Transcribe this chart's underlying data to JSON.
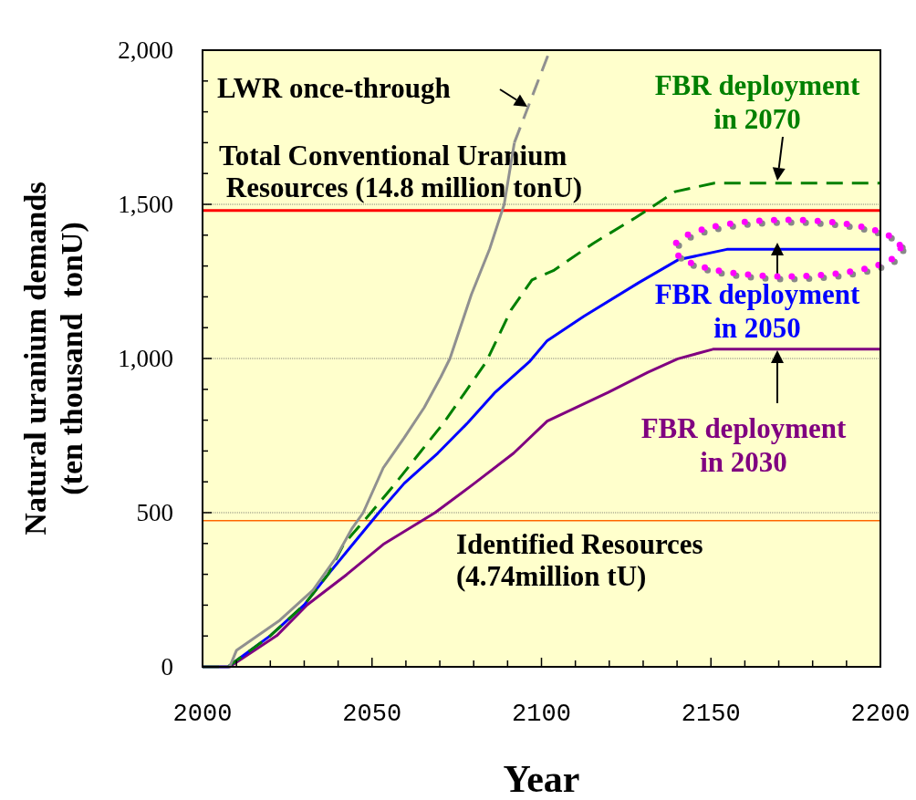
{
  "chart_data": {
    "type": "line",
    "xlabel": "Year",
    "ylabel": "Natural uranium demands\n(ten thousand  tonU)",
    "xlim": [
      2000,
      2200
    ],
    "ylim": [
      0,
      2000
    ],
    "xticks": [
      2000,
      {
        "value": 2010,
        "label": null
      },
      {
        "value": 2020,
        "label": null
      },
      {
        "value": 2030,
        "label": null
      },
      {
        "value": 2040,
        "label": null
      },
      2050,
      {
        "value": 2060,
        "label": null
      },
      {
        "value": 2070,
        "label": null
      },
      {
        "value": 2080,
        "label": null
      },
      {
        "value": 2090,
        "label": null
      },
      2100,
      {
        "value": 2110,
        "label": null
      },
      {
        "value": 2120,
        "label": null
      },
      {
        "value": 2130,
        "label": null
      },
      {
        "value": 2140,
        "label": null
      },
      2150,
      {
        "value": 2160,
        "label": null
      },
      {
        "value": 2170,
        "label": null
      },
      {
        "value": 2180,
        "label": null
      },
      {
        "value": 2190,
        "label": null
      },
      2200
    ],
    "yticks": [
      0,
      {
        "value": 100,
        "label": null
      },
      {
        "value": 200,
        "label": null
      },
      {
        "value": 300,
        "label": null
      },
      {
        "value": 400,
        "label": null
      },
      500,
      {
        "value": 600,
        "label": null
      },
      {
        "value": 700,
        "label": null
      },
      {
        "value": 800,
        "label": null
      },
      {
        "value": 900,
        "label": null
      },
      {
        "value": 1000,
        "label": "1,000"
      },
      {
        "value": 1100,
        "label": null
      },
      {
        "value": 1200,
        "label": null
      },
      {
        "value": 1300,
        "label": null
      },
      {
        "value": 1400,
        "label": null
      },
      {
        "value": 1500,
        "label": "1,500"
      },
      {
        "value": 1600,
        "label": null
      },
      {
        "value": 1700,
        "label": null
      },
      {
        "value": 1800,
        "label": null
      },
      {
        "value": 1900,
        "label": null
      },
      {
        "value": 2000,
        "label": "2,000"
      }
    ],
    "grid": "y",
    "ref_lines": [
      {
        "axis": "y",
        "value": 1480,
        "label": "Total Conventional Uranium\n Resources (14.8 million tonU)",
        "color": "#ff0000"
      },
      {
        "axis": "y",
        "value": 474,
        "label": "Identified Resources\n(4.74million tU)",
        "color": "#ff6600"
      }
    ],
    "series": [
      {
        "name": "LWR once-through",
        "color": "#909090",
        "line_style": "solid",
        "x": [
          2000,
          2008,
          2010,
          2022.8,
          2032.6,
          2039,
          2044,
          2047.4,
          2053.3,
          2059.5,
          2065.4,
          2070.3,
          2073,
          2079.3,
          2084.7,
          2089,
          2092
        ],
        "values": [
          0,
          0,
          53,
          151,
          249,
          348,
          447,
          500,
          645,
          743,
          841,
          940,
          1000,
          1207,
          1355,
          1500,
          1700
        ]
      },
      {
        "color": "#909090",
        "line_style": "dashed",
        "x": [
          2092,
          2102.5
        ],
        "values": [
          1700,
          2000
        ]
      },
      {
        "name": "FBR deployment\nin 2070",
        "color": "#008000",
        "line_style": "dashed",
        "x": [
          2000,
          2007.5,
          2020,
          2030,
          2037,
          2041.6,
          2049.7,
          2056.9,
          2064,
          2071.2,
          2077.5,
          2083.7,
          2091,
          2097.2,
          2103.5,
          2115.2,
          2127.8,
          2139.4,
          2151,
          2200
        ],
        "values": [
          0,
          0,
          101,
          201,
          299,
          397,
          500,
          595,
          693,
          792,
          891,
          989,
          1157,
          1255,
          1285,
          1373,
          1457,
          1541,
          1569,
          1569
        ]
      },
      {
        "name": "FBR deployment\nin 2050",
        "color": "#0000ff",
        "line_style": "solid",
        "x": [
          2000,
          2007.5,
          2020,
          2030,
          2037,
          2044.3,
          2052,
          2059.5,
          2069.4,
          2078.3,
          2086.4,
          2096.4,
          2101.7,
          2112.5,
          2128.7,
          2140.3,
          2154.7,
          2200
        ],
        "values": [
          0,
          0,
          101,
          201,
          299,
          397,
          500,
          595,
          693,
          792,
          891,
          989,
          1058,
          1137,
          1246,
          1320,
          1354,
          1354
        ]
      },
      {
        "name": "FBR deployment\nin 2030",
        "color": "#800080",
        "line_style": "solid",
        "x": [
          2000,
          2008,
          2021.9,
          2030.9,
          2042.5,
          2053.3,
          2068.6,
          2080.2,
          2091.8,
          2101.7,
          2119.7,
          2131.4,
          2140.2,
          2150.6,
          2200
        ],
        "values": [
          0,
          0,
          101,
          201,
          299,
          397,
          500,
          595,
          693,
          797,
          890,
          955,
          999,
          1030,
          1030
        ]
      }
    ]
  }
}
